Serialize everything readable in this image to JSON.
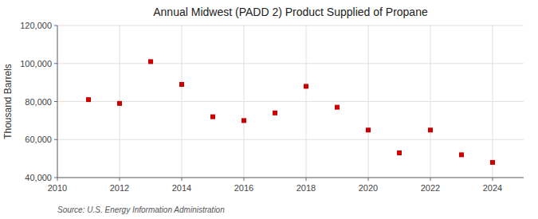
{
  "chart_data": {
    "type": "scatter",
    "title": "Annual Midwest (PADD 2) Product Supplied of Propane",
    "ylabel": "Thousand Barrels",
    "source": "Source: U.S. Energy Information Administration",
    "x": [
      2011,
      2012,
      2013,
      2014,
      2015,
      2016,
      2017,
      2018,
      2019,
      2020,
      2021,
      2022,
      2023,
      2024
    ],
    "values": [
      81000,
      79000,
      101000,
      89000,
      72000,
      70000,
      74000,
      88000,
      77000,
      65000,
      53000,
      65000,
      52000,
      48000
    ],
    "color": "#cc0000",
    "marker": "square",
    "grid": true,
    "xlim": [
      2010,
      2025
    ],
    "ylim": [
      40000,
      120000
    ],
    "xticks": [
      2010,
      2012,
      2014,
      2016,
      2018,
      2020,
      2022,
      2024
    ],
    "yticks": [
      {
        "value": 40000,
        "label": "40,000"
      },
      {
        "value": 60000,
        "label": "60,000"
      },
      {
        "value": 80000,
        "label": "80,000"
      },
      {
        "value": 100000,
        "label": "100,000"
      },
      {
        "value": 120000,
        "label": "120,000"
      }
    ]
  }
}
